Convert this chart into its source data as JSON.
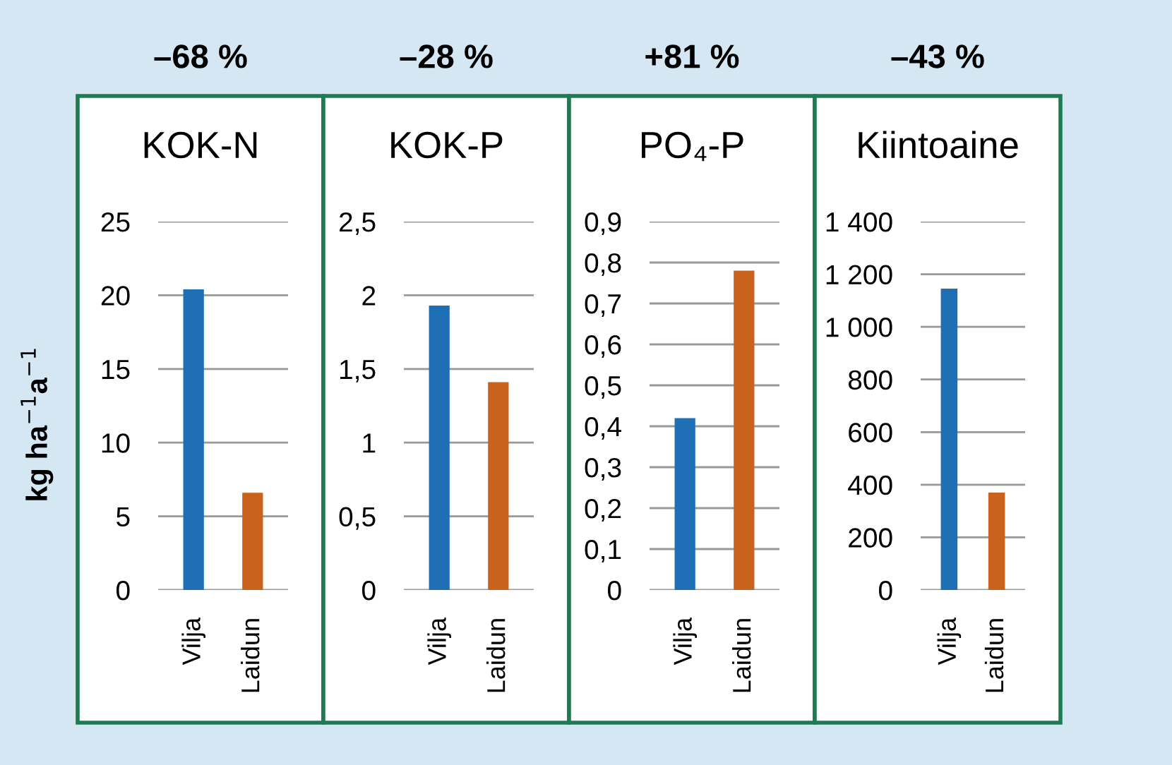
{
  "chart_data": [
    {
      "type": "bar",
      "title": "KOK-N",
      "ylabel": "kg ha$^{−1}$a$^{−1}$",
      "annotations": [
        "–68 %"
      ],
      "categories": [
        "Vilja",
        "Laidun"
      ],
      "values": [
        20.4,
        6.6
      ],
      "colors": [
        "#1f6fb5",
        "#c8621c"
      ],
      "ylim": [
        0,
        25
      ],
      "yticks": [
        0,
        5,
        10,
        15,
        20,
        25
      ],
      "grid": "y"
    },
    {
      "type": "bar",
      "title": "KOK-P",
      "annotations": [
        "–28 %"
      ],
      "categories": [
        "Vilja",
        "Laidun"
      ],
      "values": [
        1.93,
        1.41
      ],
      "colors": [
        "#1f6fb5",
        "#c8621c"
      ],
      "ylim": [
        0,
        2.5
      ],
      "yticks": [
        0,
        {
          "value": 0.5,
          "label": "0,5"
        },
        1,
        {
          "value": 1.5,
          "label": "1,5"
        },
        2,
        {
          "value": 2.5,
          "label": "2,5"
        }
      ],
      "grid": "y"
    },
    {
      "type": "bar",
      "title": "PO₄-P",
      "annotations": [
        "+81 %"
      ],
      "categories": [
        "Vilja",
        "Laidun"
      ],
      "values": [
        0.42,
        0.78
      ],
      "colors": [
        "#1f6fb5",
        "#c8621c"
      ],
      "ylim": [
        0,
        0.9
      ],
      "yticks": [
        0,
        {
          "value": 0.1,
          "label": "0,1"
        },
        {
          "value": 0.2,
          "label": "0,2"
        },
        {
          "value": 0.3,
          "label": "0,3"
        },
        {
          "value": 0.4,
          "label": "0,4"
        },
        {
          "value": 0.5,
          "label": "0,5"
        },
        {
          "value": 0.6,
          "label": "0,6"
        },
        {
          "value": 0.7,
          "label": "0,7"
        },
        {
          "value": 0.8,
          "label": "0,8"
        },
        {
          "value": 0.9,
          "label": "0,9"
        }
      ],
      "grid": "y"
    },
    {
      "type": "bar",
      "title": "Kiintoaine",
      "annotations": [
        "–43 %"
      ],
      "categories": [
        "Vilja",
        "Laidun"
      ],
      "values": [
        1145,
        370
      ],
      "colors": [
        "#1f6fb5",
        "#c8621c"
      ],
      "ylim": [
        0,
        1400
      ],
      "yticks": [
        0,
        200,
        400,
        600,
        800,
        {
          "value": 1000,
          "label": "1 000"
        },
        {
          "value": 1200,
          "label": "1 200"
        },
        {
          "value": 1400,
          "label": "1 400"
        }
      ],
      "grid": "y"
    }
  ]
}
